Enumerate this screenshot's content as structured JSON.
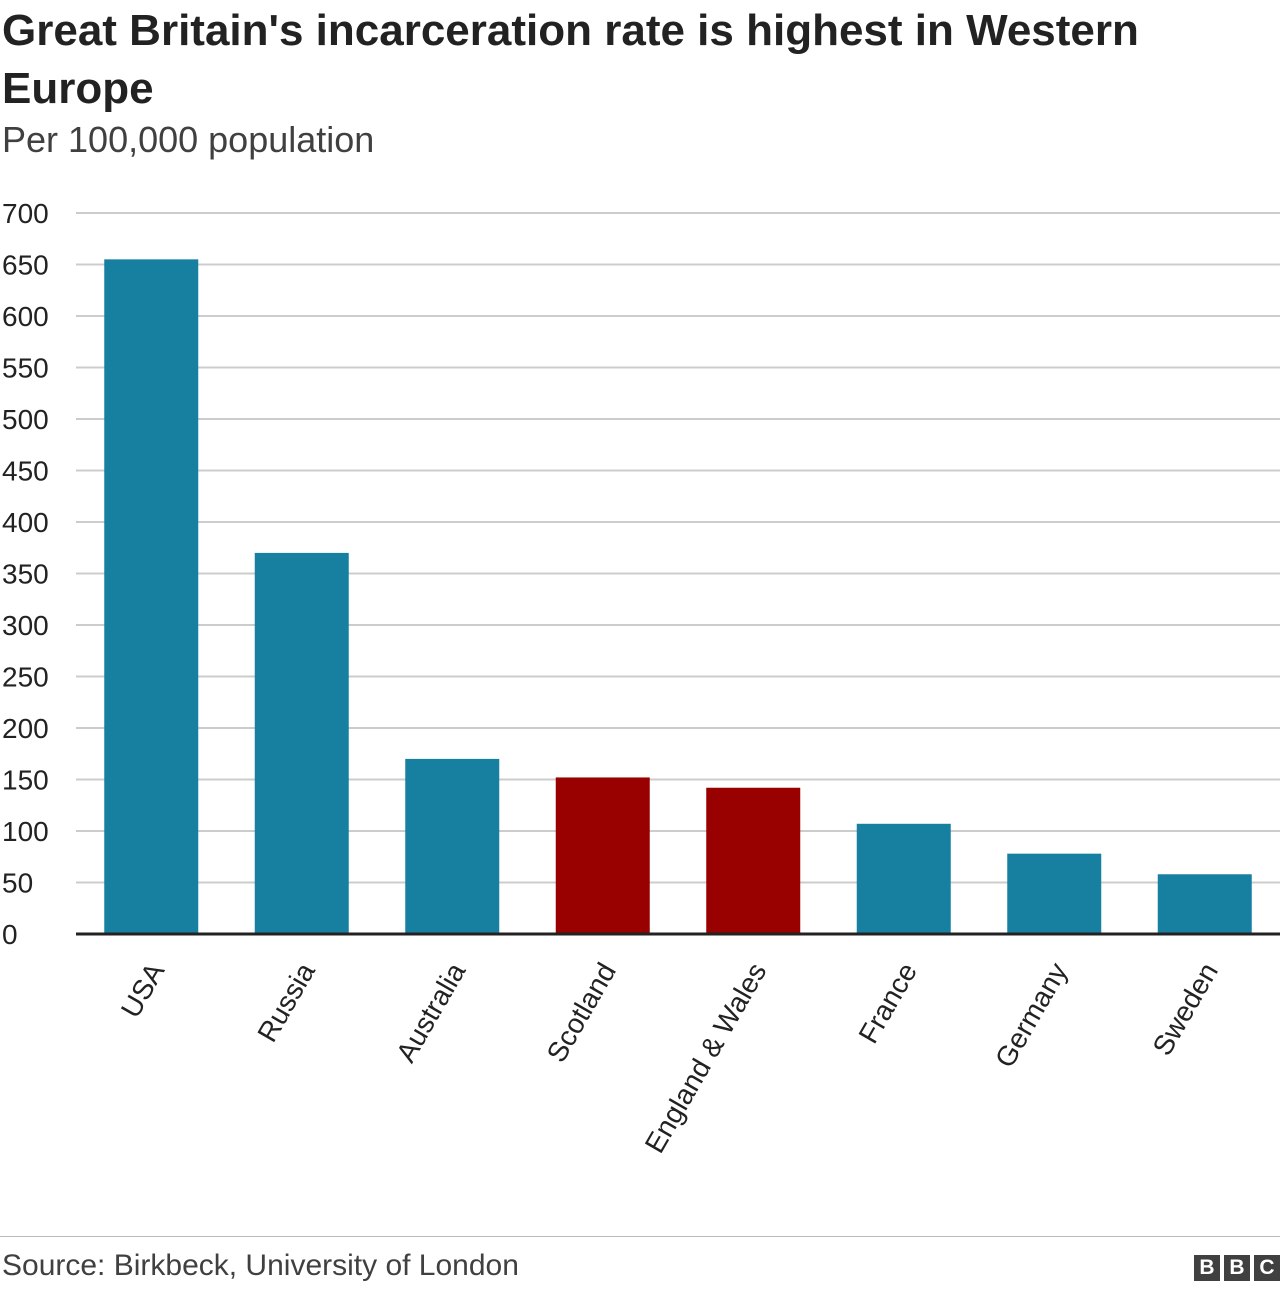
{
  "title": "Great Britain's incarceration rate is highest in Western Europe",
  "subtitle": "Per 100,000 population",
  "source": "Source: Birkbeck, University of London",
  "logo": [
    "B",
    "B",
    "C"
  ],
  "colors": {
    "default_bar": "#1780a1",
    "highlight_bar": "#990000",
    "grid": "#cccccc",
    "axis": "#222222"
  },
  "chart_data": {
    "type": "bar",
    "categories": [
      "USA",
      "Russia",
      "Australia",
      "Scotland",
      "England & Wales",
      "France",
      "Germany",
      "Sweden"
    ],
    "values": [
      655,
      370,
      170,
      152,
      142,
      107,
      78,
      58
    ],
    "highlighted": [
      "Scotland",
      "England & Wales"
    ],
    "ylim": [
      0,
      700
    ],
    "yticks": [
      0,
      50,
      100,
      150,
      200,
      250,
      300,
      350,
      400,
      450,
      500,
      550,
      600,
      650,
      700
    ],
    "xlabel": "",
    "ylabel": "",
    "grid": true,
    "legend": "none"
  }
}
